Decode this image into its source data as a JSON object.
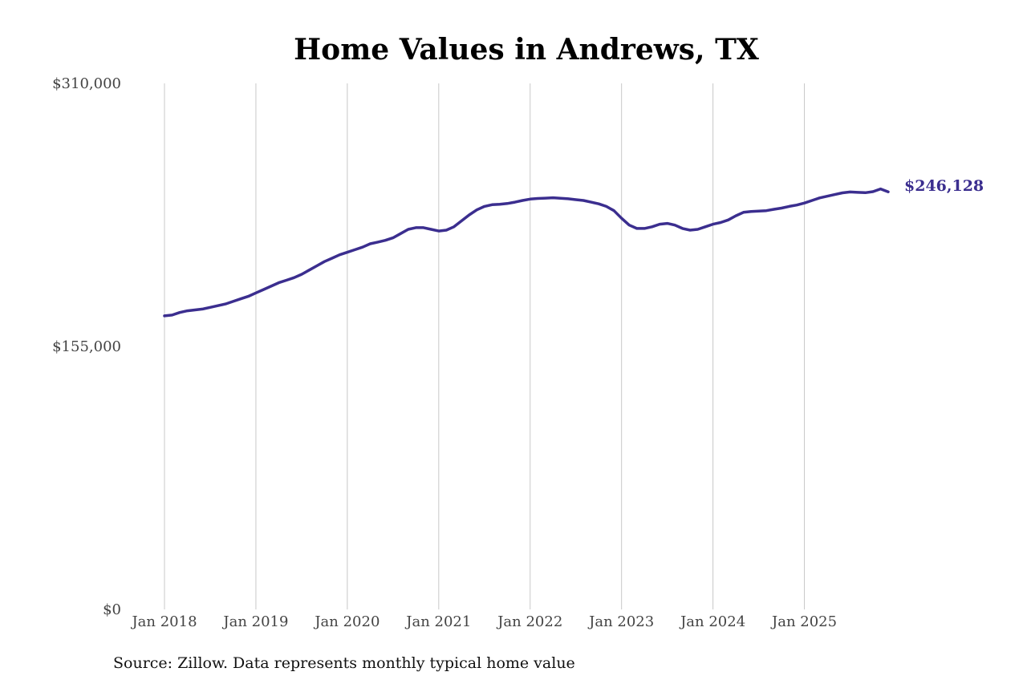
{
  "colors": {
    "series": "#3b2e8f",
    "grid": "#c8c8c8",
    "background": "#ffffff"
  },
  "chart_data": {
    "type": "line",
    "title": "Home Values in Andrews, TX",
    "xlabel": "",
    "ylabel": "",
    "ylim": [
      0,
      310000
    ],
    "xlim": [
      "2018-01",
      "2025-12"
    ],
    "y_ticks": [
      {
        "value": 0,
        "label": "$0"
      },
      {
        "value": 155000,
        "label": "$155,000"
      },
      {
        "value": 310000,
        "label": "$310,000"
      }
    ],
    "x_ticks": [
      {
        "value": "2018-01",
        "label": "Jan 2018"
      },
      {
        "value": "2019-01",
        "label": "Jan 2019"
      },
      {
        "value": "2020-01",
        "label": "Jan 2020"
      },
      {
        "value": "2021-01",
        "label": "Jan 2021"
      },
      {
        "value": "2022-01",
        "label": "Jan 2022"
      },
      {
        "value": "2023-01",
        "label": "Jan 2023"
      },
      {
        "value": "2024-01",
        "label": "Jan 2024"
      },
      {
        "value": "2025-01",
        "label": "Jan 2025"
      }
    ],
    "grid": "vertical",
    "end_label": "$246,128",
    "series": [
      {
        "points": [
          [
            "2018-01",
            173000
          ],
          [
            "2018-02",
            173500
          ],
          [
            "2018-03",
            175000
          ],
          [
            "2018-04",
            176000
          ],
          [
            "2018-05",
            176500
          ],
          [
            "2018-06",
            177000
          ],
          [
            "2018-07",
            178000
          ],
          [
            "2018-08",
            179000
          ],
          [
            "2018-09",
            180000
          ],
          [
            "2018-10",
            181500
          ],
          [
            "2018-11",
            183000
          ],
          [
            "2018-12",
            184500
          ],
          [
            "2019-01",
            186500
          ],
          [
            "2019-02",
            188500
          ],
          [
            "2019-03",
            190500
          ],
          [
            "2019-04",
            192500
          ],
          [
            "2019-05",
            194000
          ],
          [
            "2019-06",
            195500
          ],
          [
            "2019-07",
            197500
          ],
          [
            "2019-08",
            200000
          ],
          [
            "2019-09",
            202500
          ],
          [
            "2019-10",
            205000
          ],
          [
            "2019-11",
            207000
          ],
          [
            "2019-12",
            209000
          ],
          [
            "2020-01",
            210500
          ],
          [
            "2020-02",
            212000
          ],
          [
            "2020-03",
            213500
          ],
          [
            "2020-04",
            215500
          ],
          [
            "2020-05",
            216500
          ],
          [
            "2020-06",
            217500
          ],
          [
            "2020-07",
            219000
          ],
          [
            "2020-08",
            221500
          ],
          [
            "2020-09",
            224000
          ],
          [
            "2020-10",
            225000
          ],
          [
            "2020-11",
            225000
          ],
          [
            "2020-12",
            224000
          ],
          [
            "2021-01",
            223000
          ],
          [
            "2021-02",
            223500
          ],
          [
            "2021-03",
            225500
          ],
          [
            "2021-04",
            229000
          ],
          [
            "2021-05",
            232500
          ],
          [
            "2021-06",
            235500
          ],
          [
            "2021-07",
            237500
          ],
          [
            "2021-08",
            238500
          ],
          [
            "2021-09",
            238800
          ],
          [
            "2021-10",
            239200
          ],
          [
            "2021-11",
            240000
          ],
          [
            "2021-12",
            241000
          ],
          [
            "2022-01",
            241800
          ],
          [
            "2022-02",
            242200
          ],
          [
            "2022-03",
            242400
          ],
          [
            "2022-04",
            242600
          ],
          [
            "2022-05",
            242300
          ],
          [
            "2022-06",
            242000
          ],
          [
            "2022-07",
            241500
          ],
          [
            "2022-08",
            241000
          ],
          [
            "2022-09",
            240000
          ],
          [
            "2022-10",
            239000
          ],
          [
            "2022-11",
            237500
          ],
          [
            "2022-12",
            235000
          ],
          [
            "2023-01",
            230500
          ],
          [
            "2023-02",
            226500
          ],
          [
            "2023-03",
            224500
          ],
          [
            "2023-04",
            224500
          ],
          [
            "2023-05",
            225500
          ],
          [
            "2023-06",
            227000
          ],
          [
            "2023-07",
            227500
          ],
          [
            "2023-08",
            226500
          ],
          [
            "2023-09",
            224500
          ],
          [
            "2023-10",
            223500
          ],
          [
            "2023-11",
            224000
          ],
          [
            "2023-12",
            225500
          ],
          [
            "2024-01",
            227000
          ],
          [
            "2024-02",
            228000
          ],
          [
            "2024-03",
            229500
          ],
          [
            "2024-04",
            232000
          ],
          [
            "2024-05",
            234000
          ],
          [
            "2024-06",
            234500
          ],
          [
            "2024-07",
            234700
          ],
          [
            "2024-08",
            235000
          ],
          [
            "2024-09",
            235800
          ],
          [
            "2024-10",
            236500
          ],
          [
            "2024-11",
            237500
          ],
          [
            "2024-12",
            238300
          ],
          [
            "2025-01",
            239500
          ],
          [
            "2025-02",
            241000
          ],
          [
            "2025-03",
            242500
          ],
          [
            "2025-04",
            243500
          ],
          [
            "2025-05",
            244500
          ],
          [
            "2025-06",
            245500
          ],
          [
            "2025-07",
            246000
          ],
          [
            "2025-08",
            245800
          ],
          [
            "2025-09",
            245600
          ],
          [
            "2025-10",
            246200
          ],
          [
            "2025-11",
            247800
          ],
          [
            "2025-12",
            246128
          ]
        ]
      }
    ]
  },
  "source_note": "Source: Zillow. Data represents monthly typical home value"
}
